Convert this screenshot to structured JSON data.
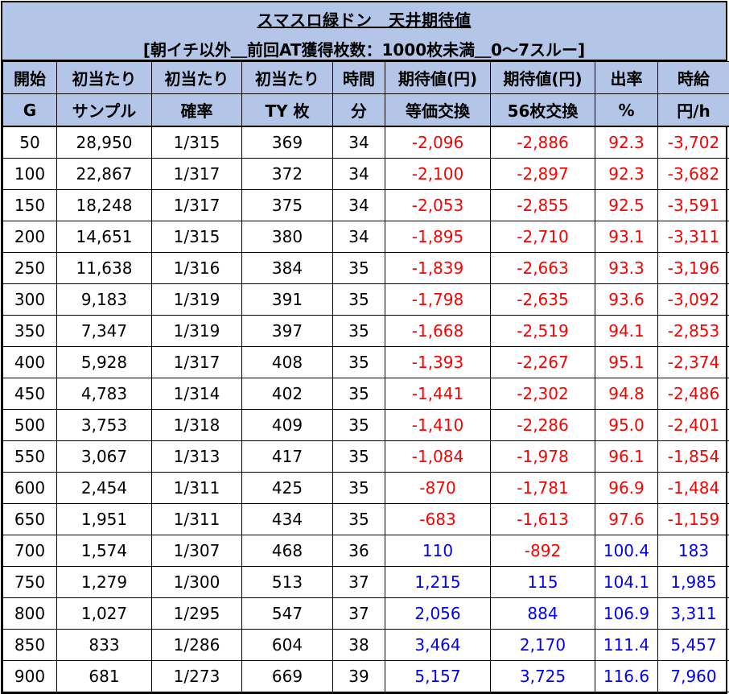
{
  "title": "スマスロ緑ドン　天井期待値",
  "subtitle": "[朝イチ以外＿前回AT獲得枚数：1000枚未満＿0〜7スルー]",
  "headers": [
    [
      "開始",
      "G"
    ],
    [
      "初当たり",
      "サンプル"
    ],
    [
      "初当たり",
      "確率"
    ],
    [
      "初当たり",
      "TY 枚"
    ],
    [
      "時間",
      "分"
    ],
    [
      "期待値(円)",
      "等価交換"
    ],
    [
      "期待値(円)",
      "56枚交換"
    ],
    [
      "出率",
      "%"
    ],
    [
      "時給",
      "円/h"
    ]
  ],
  "colors": {
    "header_bg": "#b4c6e7",
    "negative": "#ff0000",
    "positive": "#0000ff"
  },
  "rows": [
    [
      "50",
      "28,950",
      "1/315",
      "369",
      "34",
      "-2,096",
      "-2,886",
      "92.3",
      "-3,702"
    ],
    [
      "100",
      "22,867",
      "1/317",
      "372",
      "34",
      "-2,100",
      "-2,897",
      "92.3",
      "-3,682"
    ],
    [
      "150",
      "18,248",
      "1/317",
      "375",
      "34",
      "-2,053",
      "-2,855",
      "92.5",
      "-3,591"
    ],
    [
      "200",
      "14,651",
      "1/315",
      "380",
      "34",
      "-1,895",
      "-2,710",
      "93.1",
      "-3,311"
    ],
    [
      "250",
      "11,638",
      "1/316",
      "384",
      "35",
      "-1,839",
      "-2,663",
      "93.3",
      "-3,196"
    ],
    [
      "300",
      "9,183",
      "1/319",
      "391",
      "35",
      "-1,798",
      "-2,635",
      "93.6",
      "-3,092"
    ],
    [
      "350",
      "7,347",
      "1/319",
      "397",
      "35",
      "-1,668",
      "-2,519",
      "94.1",
      "-2,853"
    ],
    [
      "400",
      "5,928",
      "1/317",
      "408",
      "35",
      "-1,393",
      "-2,267",
      "95.1",
      "-2,374"
    ],
    [
      "450",
      "4,783",
      "1/314",
      "402",
      "35",
      "-1,441",
      "-2,302",
      "94.8",
      "-2,486"
    ],
    [
      "500",
      "3,753",
      "1/318",
      "409",
      "35",
      "-1,410",
      "-2,286",
      "95.0",
      "-2,401"
    ],
    [
      "550",
      "3,067",
      "1/313",
      "417",
      "35",
      "-1,084",
      "-1,978",
      "96.1",
      "-1,854"
    ],
    [
      "600",
      "2,454",
      "1/311",
      "425",
      "35",
      "-870",
      "-1,781",
      "96.9",
      "-1,484"
    ],
    [
      "650",
      "1,951",
      "1/311",
      "434",
      "35",
      "-683",
      "-1,613",
      "97.6",
      "-1,159"
    ],
    [
      "700",
      "1,574",
      "1/307",
      "468",
      "36",
      "110",
      "-892",
      "100.4",
      "183"
    ],
    [
      "750",
      "1,279",
      "1/300",
      "513",
      "37",
      "1,215",
      "115",
      "104.1",
      "1,985"
    ],
    [
      "800",
      "1,027",
      "1/295",
      "547",
      "37",
      "2,056",
      "884",
      "106.9",
      "3,311"
    ],
    [
      "850",
      "833",
      "1/286",
      "604",
      "38",
      "3,464",
      "2,170",
      "111.4",
      "5,457"
    ],
    [
      "900",
      "681",
      "1/273",
      "669",
      "39",
      "5,157",
      "3,725",
      "116.6",
      "7,960"
    ]
  ]
}
